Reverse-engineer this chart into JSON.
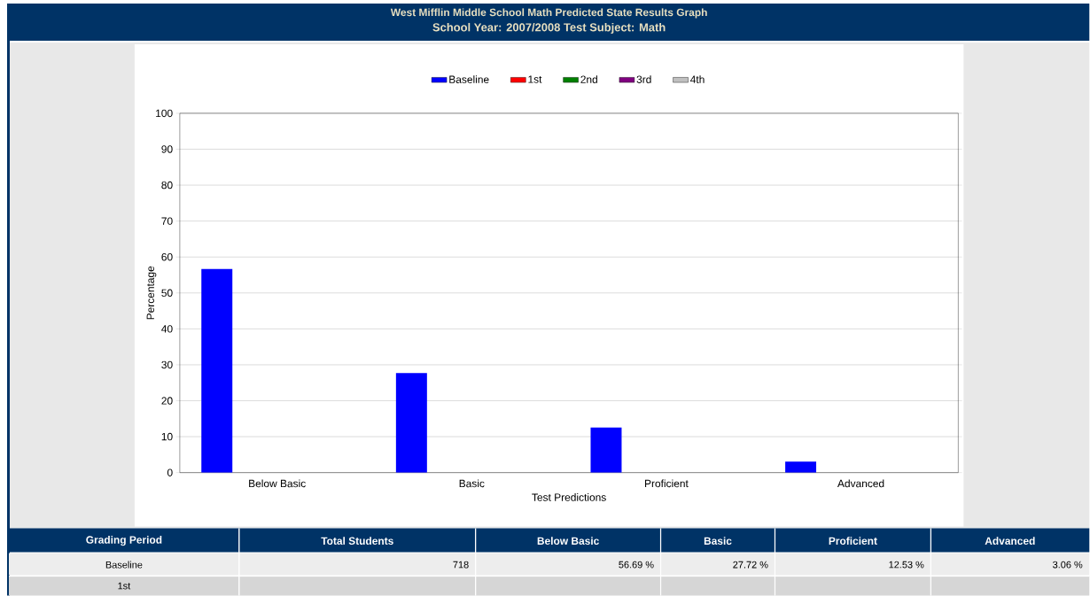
{
  "chart_data": {
    "type": "bar",
    "title": "West Mifflin Middle School Math Predicted State Results Graph",
    "subtitle": "School Year: 2007/2008 Test Subject: Math",
    "xlabel": "Test Predictions",
    "ylabel": "Percentage",
    "categories": [
      "Below Basic",
      "Basic",
      "Proficient",
      "Advanced"
    ],
    "series": [
      {
        "name": "Baseline",
        "color": "#0000ff",
        "values": [
          56.69,
          27.72,
          12.53,
          3.06
        ]
      },
      {
        "name": "1st",
        "color": "#ff0000",
        "values": [
          null,
          null,
          null,
          null
        ]
      },
      {
        "name": "2nd",
        "color": "#008000",
        "values": [
          null,
          null,
          null,
          null
        ]
      },
      {
        "name": "3rd",
        "color": "#800080",
        "values": [
          null,
          null,
          null,
          null
        ]
      },
      {
        "name": "4th",
        "color": "#c0c0c0",
        "values": [
          null,
          null,
          null,
          null
        ]
      }
    ],
    "ylim": [
      0,
      100
    ],
    "yticks": [
      0,
      10,
      20,
      30,
      40,
      50,
      60,
      70,
      80,
      90,
      100
    ],
    "grid": "y",
    "legend": "top",
    "annotations": [
      "Grading Period",
      "Total Students",
      "718",
      "56.69 %",
      "27.72 %",
      "12.53 %",
      "3.06 %"
    ]
  }
}
